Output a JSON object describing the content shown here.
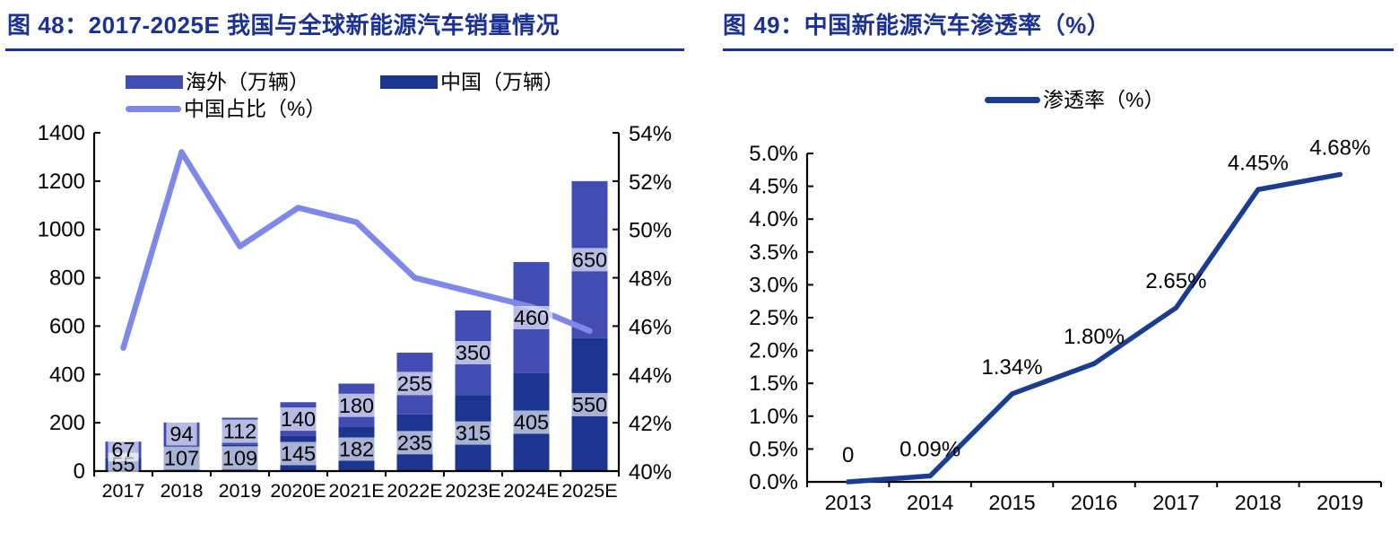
{
  "theme": {
    "title_color": "#1B3193",
    "axis_color": "#000000",
    "label_bg": "rgba(255,255,255,0.62)",
    "background": "#ffffff"
  },
  "chart_data": [
    {
      "id": "figure-48",
      "type": "bar+line",
      "title": "图 48：2017-2025E 我国与全球新能源汽车销量情况",
      "legend_position": "top",
      "grid": false,
      "categories": [
        "2017",
        "2018",
        "2019",
        "2020E",
        "2021E",
        "2022E",
        "2023E",
        "2024E",
        "2025E"
      ],
      "series": [
        {
          "name": "中国（万辆）",
          "type": "bar",
          "stack_order": 0,
          "color": "#1C358E",
          "values": [
            55,
            107,
            109,
            145,
            182,
            235,
            315,
            405,
            550
          ],
          "labels": [
            "55",
            "107",
            "109",
            "145",
            "182",
            "235",
            "315",
            "405",
            "550"
          ]
        },
        {
          "name": "海外（万辆）",
          "type": "bar",
          "stack_order": 1,
          "color": "#434CB2",
          "values": [
            67,
            94,
            112,
            140,
            180,
            255,
            350,
            460,
            650
          ],
          "labels": [
            "67",
            "94",
            "112",
            "140",
            "180",
            "255",
            "350",
            "460",
            "650"
          ]
        },
        {
          "name": "中国占比（%）",
          "type": "line",
          "axis": "right",
          "color": "#7F87E8",
          "values": [
            45.1,
            53.2,
            49.3,
            50.9,
            50.3,
            48.0,
            47.4,
            46.8,
            45.8
          ]
        }
      ],
      "left_axis": {
        "min": 0,
        "max": 1400,
        "step": 200,
        "ticks": [
          "0",
          "200",
          "400",
          "600",
          "800",
          "1000",
          "1200",
          "1400"
        ]
      },
      "right_axis": {
        "min": 40,
        "max": 54,
        "step": 2,
        "ticks": [
          "40%",
          "42%",
          "44%",
          "46%",
          "48%",
          "50%",
          "52%",
          "54%"
        ]
      }
    },
    {
      "id": "figure-49",
      "type": "line",
      "title": "图 49：中国新能源汽车渗透率（%）",
      "legend_position": "top",
      "grid": false,
      "categories": [
        "2013",
        "2014",
        "2015",
        "2016",
        "2017",
        "2018",
        "2019"
      ],
      "series": [
        {
          "name": "渗透率（%）",
          "type": "line",
          "color": "#1C3C8F",
          "values": [
            0,
            0.09,
            1.34,
            1.8,
            2.65,
            4.45,
            4.68
          ],
          "labels": [
            "0",
            "0.09%",
            "1.34%",
            "1.80%",
            "2.65%",
            "4.45%",
            "4.68%"
          ]
        }
      ],
      "y_axis": {
        "min": 0,
        "max": 5,
        "step": 0.5,
        "ticks": [
          "0.0%",
          "0.5%",
          "1.0%",
          "1.5%",
          "2.0%",
          "2.5%",
          "3.0%",
          "3.5%",
          "4.0%",
          "4.5%",
          "5.0%"
        ]
      }
    }
  ]
}
